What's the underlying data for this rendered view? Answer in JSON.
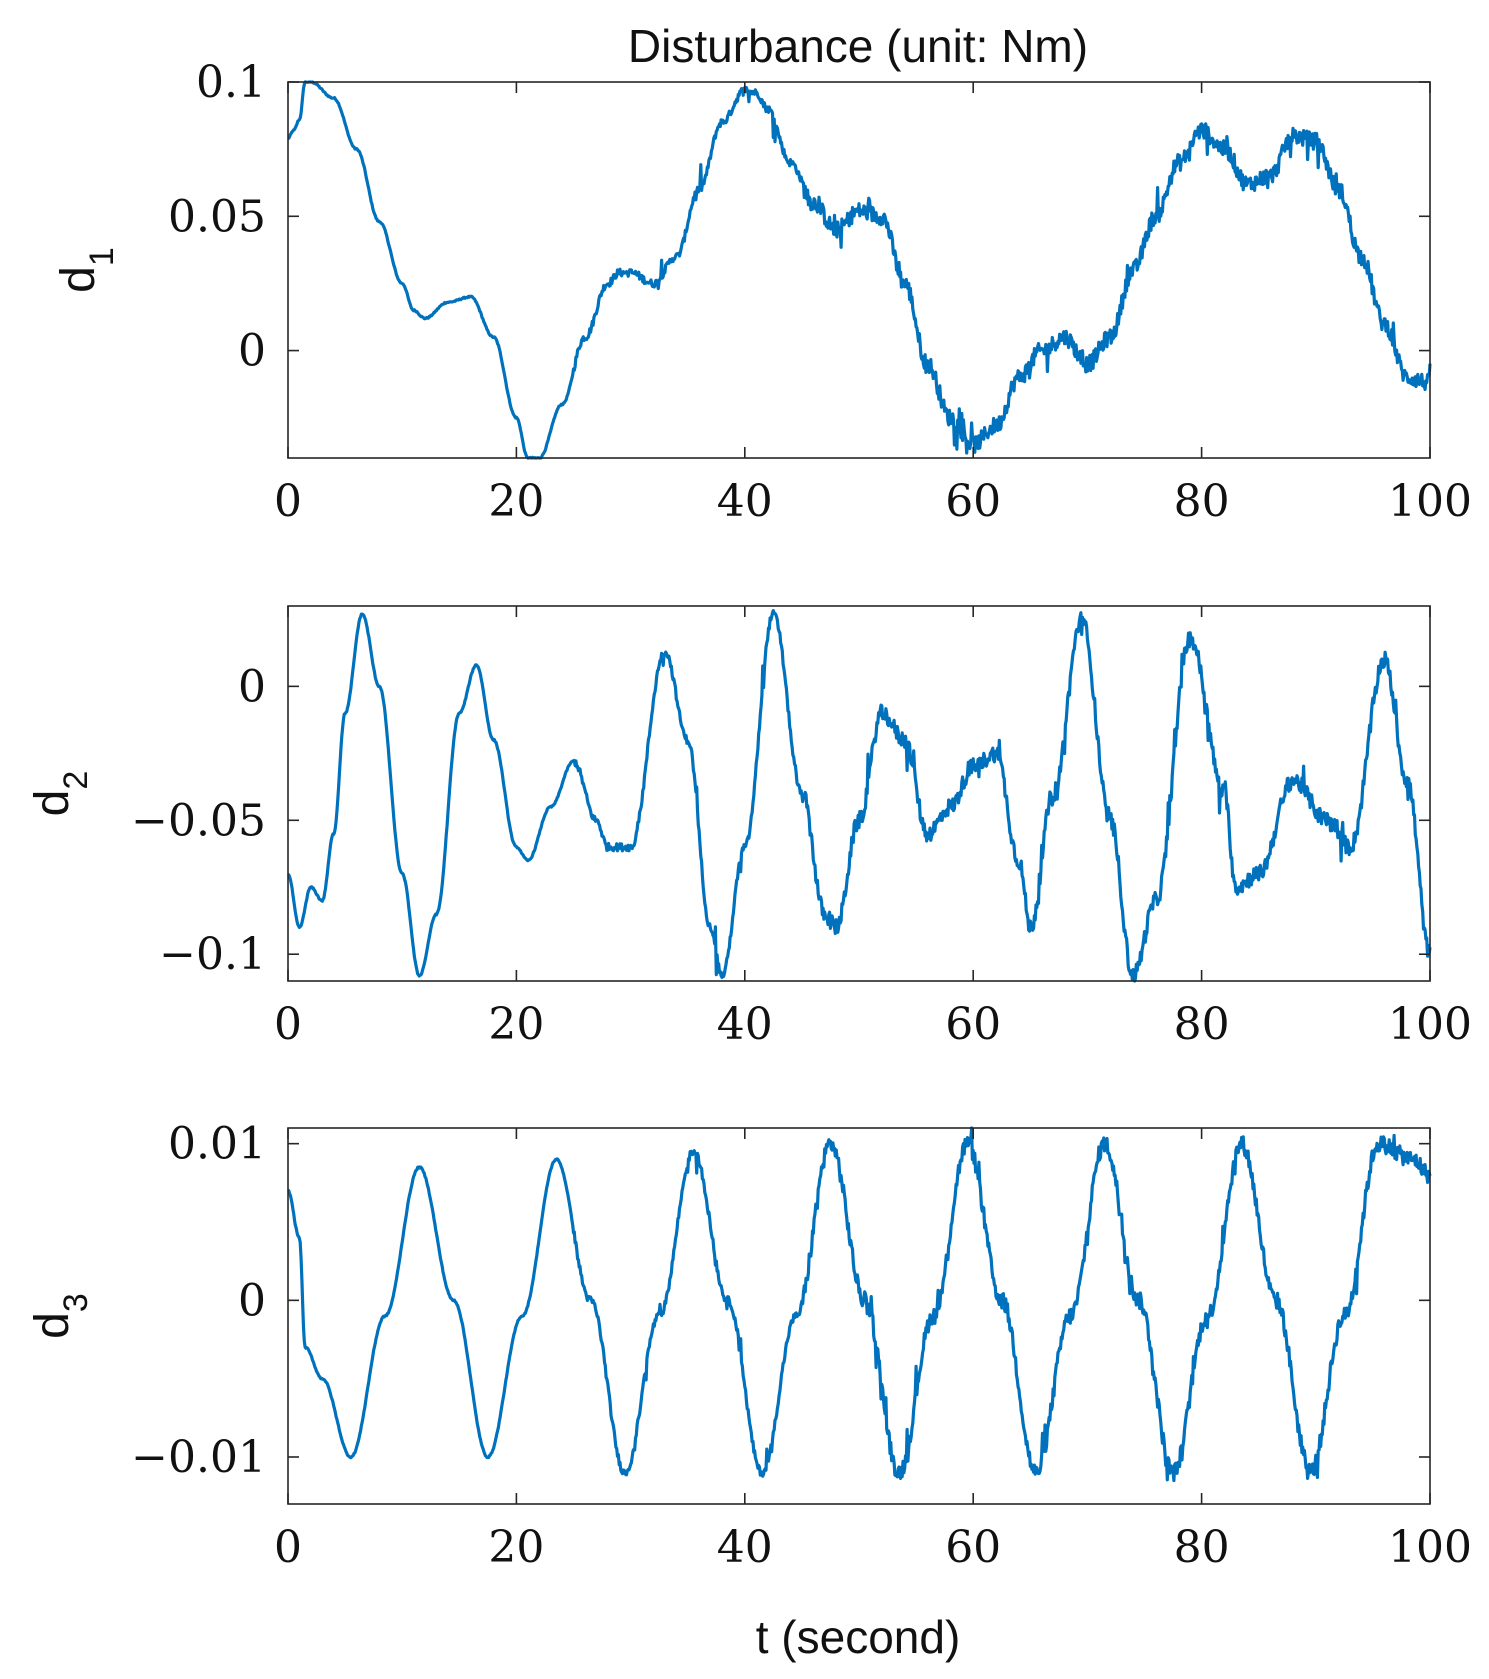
{
  "figure": {
    "title": "Disturbance (unit: Nm)",
    "xlabel": "t (second)"
  },
  "chart_data": [
    {
      "type": "line",
      "ylabel": {
        "base": "d",
        "sub": "1"
      },
      "xlim": [
        0,
        100
      ],
      "ylim": [
        -0.04,
        0.1
      ],
      "xticks": [
        0,
        20,
        40,
        60,
        80,
        100
      ],
      "xtick_labels": [
        "0",
        "20",
        "40",
        "60",
        "80",
        "100"
      ],
      "yticks": [
        0.1,
        0.05,
        0
      ],
      "ytick_labels": [
        "0.1",
        "0.05",
        "0"
      ],
      "grid": false,
      "color": "#0072BD",
      "series": [
        {
          "x": [
            0,
            0.5,
            1,
            1.5,
            2,
            4,
            6,
            8,
            10,
            11,
            12,
            14,
            16,
            18,
            20,
            21,
            22,
            24,
            26,
            28,
            29,
            30,
            32,
            34,
            36,
            38,
            40,
            41,
            42,
            44,
            46,
            48,
            50,
            52,
            54,
            56,
            58,
            60,
            62,
            64,
            66,
            68,
            70,
            72,
            74,
            76,
            78,
            80,
            82,
            84,
            86,
            88,
            90,
            92,
            94,
            96,
            98,
            100
          ],
          "y": [
            0.079,
            0.082,
            0.086,
            0.1,
            0.1,
            0.094,
            0.075,
            0.048,
            0.025,
            0.015,
            0.012,
            0.018,
            0.02,
            0.005,
            -0.025,
            -0.04,
            -0.04,
            -0.02,
            0.005,
            0.025,
            0.029,
            0.029,
            0.025,
            0.035,
            0.06,
            0.085,
            0.097,
            0.096,
            0.09,
            0.07,
            0.055,
            0.045,
            0.052,
            0.05,
            0.025,
            -0.005,
            -0.025,
            -0.035,
            -0.028,
            -0.01,
            0.0,
            0.005,
            -0.005,
            0.005,
            0.03,
            0.05,
            0.07,
            0.082,
            0.075,
            0.062,
            0.065,
            0.08,
            0.078,
            0.06,
            0.035,
            0.01,
            -0.01,
            -0.012
          ]
        }
      ]
    },
    {
      "type": "line",
      "ylabel": {
        "base": "d",
        "sub": "2"
      },
      "xlim": [
        0,
        100
      ],
      "ylim": [
        -0.11,
        0.03
      ],
      "xticks": [
        0,
        20,
        40,
        60,
        80,
        100
      ],
      "xtick_labels": [
        "0",
        "20",
        "40",
        "60",
        "80",
        "100"
      ],
      "yticks": [
        0,
        -0.05,
        -0.1
      ],
      "ytick_labels": [
        "0",
        "−0.05",
        "−0.1"
      ],
      "grid": false,
      "color": "#0072BD",
      "series": [
        {
          "x": [
            0,
            1,
            2,
            3,
            4,
            5,
            6.5,
            8,
            10,
            11.5,
            13,
            15,
            16.5,
            18,
            20,
            21,
            23,
            25,
            27,
            28,
            30,
            33,
            35,
            37,
            38,
            40,
            42.5,
            45,
            47,
            48,
            50,
            52,
            54,
            56,
            58,
            60,
            62,
            64,
            65,
            67,
            69.5,
            72,
            74,
            76,
            79,
            82,
            83,
            85,
            88,
            91,
            93,
            96,
            98,
            100
          ],
          "y": [
            -0.07,
            -0.09,
            -0.075,
            -0.08,
            -0.055,
            -0.01,
            0.027,
            0.0,
            -0.07,
            -0.108,
            -0.085,
            -0.01,
            0.008,
            -0.02,
            -0.06,
            -0.065,
            -0.045,
            -0.028,
            -0.05,
            -0.06,
            -0.06,
            0.013,
            -0.02,
            -0.09,
            -0.108,
            -0.06,
            0.027,
            -0.04,
            -0.085,
            -0.09,
            -0.05,
            -0.01,
            -0.02,
            -0.055,
            -0.045,
            -0.03,
            -0.025,
            -0.065,
            -0.09,
            -0.04,
            0.025,
            -0.05,
            -0.108,
            -0.08,
            0.018,
            -0.04,
            -0.075,
            -0.07,
            -0.035,
            -0.05,
            -0.06,
            0.01,
            -0.035,
            -0.1
          ]
        }
      ]
    },
    {
      "type": "line",
      "ylabel": {
        "base": "d",
        "sub": "3"
      },
      "xlim": [
        0,
        100
      ],
      "ylim": [
        -0.013,
        0.011
      ],
      "xticks": [
        0,
        20,
        40,
        60,
        80,
        100
      ],
      "xtick_labels": [
        "0",
        "20",
        "40",
        "60",
        "80",
        "100"
      ],
      "yticks": [
        0.01,
        0,
        -0.01
      ],
      "ytick_labels": [
        "0.01",
        "0",
        "−0.01"
      ],
      "grid": false,
      "color": "#0072BD",
      "series": [
        {
          "x": [
            0,
            1,
            1.5,
            3,
            5.5,
            8.5,
            11.5,
            14.5,
            17.5,
            20.5,
            23.5,
            26.5,
            29.5,
            32.5,
            35.5,
            38.5,
            41.5,
            44.5,
            47.5,
            50.5,
            53.5,
            56.5,
            59.5,
            62.5,
            65.5,
            68.5,
            71.5,
            74.5,
            77.5,
            80.5,
            83.5,
            86.5,
            89.5,
            92.5,
            95.5,
            98.5,
            100
          ],
          "y": [
            0.007,
            0.004,
            -0.003,
            -0.005,
            -0.01,
            -0.001,
            0.0085,
            0.0,
            -0.01,
            -0.001,
            0.009,
            0.0,
            -0.011,
            -0.001,
            0.0095,
            0.0,
            -0.011,
            -0.001,
            0.01,
            0.0,
            -0.011,
            -0.001,
            0.01,
            0.0,
            -0.011,
            -0.001,
            0.01,
            0.0,
            -0.011,
            -0.001,
            0.01,
            0.0,
            -0.011,
            -0.001,
            0.01,
            0.009,
            0.008
          ]
        }
      ]
    }
  ]
}
